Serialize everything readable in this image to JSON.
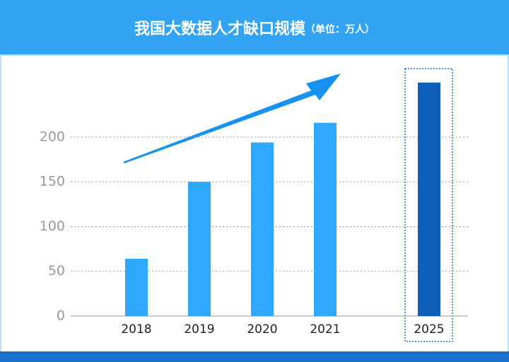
{
  "chart_data": {
    "type": "bar",
    "title": "我国大数据人才缺口规模",
    "subtitle": "（单位：万人）",
    "categories": [
      "2018",
      "2019",
      "2020",
      "2021",
      "2025"
    ],
    "values": [
      64,
      150,
      194,
      216,
      261
    ],
    "colors": [
      "#2ea8ff",
      "#2ea8ff",
      "#2ea8ff",
      "#2ea8ff",
      "#0d5fb8"
    ],
    "ylim": [
      0,
      275
    ],
    "yticks": [
      0,
      50,
      100,
      150,
      200
    ],
    "grid": true
  }
}
